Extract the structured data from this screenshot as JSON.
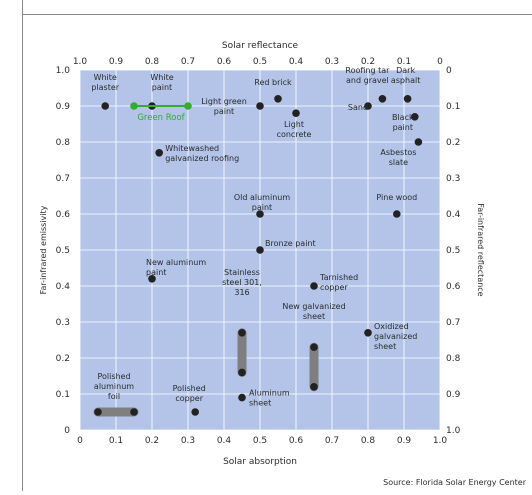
{
  "source": "Source: Florida Solar Energy Center",
  "colors": {
    "plot_bg": "#b3c4e8",
    "grid": "#ffffff",
    "marker": "#222222",
    "bar": "#7f7f7f",
    "green": "#2fae2f"
  },
  "chart_data": {
    "type": "scatter",
    "xlabel": "Solar absorption",
    "x2label": "Solar reflectance",
    "ylabel": "Far-infrared emissivity",
    "y2label": "Far-infrared reflectance",
    "xlim": [
      0,
      1.0
    ],
    "ylim": [
      0,
      1.0
    ],
    "x_ticks": [
      "0",
      "0.1",
      "0.2",
      "0.3",
      "0.4",
      "0.5",
      "0.6",
      "0.7",
      "0.8",
      "0.9",
      "1.0"
    ],
    "x2_ticks": [
      "1.0",
      "0.9",
      "0.8",
      "0.7",
      "0.6",
      "0.5",
      "0.4",
      "0.3",
      "0.2",
      "0.1",
      "0"
    ],
    "y_ticks": [
      "0",
      "0.1",
      "0.2",
      "0.3",
      "0.4",
      "0.5",
      "0.6",
      "0.7",
      "0.8",
      "0.9",
      "1.0"
    ],
    "y2_ticks": [
      "1.0",
      "0.9",
      "0.8",
      "0.7",
      "0.6",
      "0.5",
      "0.4",
      "0.3",
      "0.2",
      "0.1",
      "0"
    ],
    "grid": true,
    "points": [
      {
        "label": [
          "White",
          "plaster"
        ],
        "x": 0.07,
        "y": 0.9
      },
      {
        "label": [
          "White",
          "paint"
        ],
        "x": 0.2,
        "y": 0.9
      },
      {
        "label": [
          "Red brick"
        ],
        "x": 0.55,
        "y": 0.92
      },
      {
        "label": [
          "Light green",
          "paint"
        ],
        "x": 0.5,
        "y": 0.9
      },
      {
        "label": [
          "Light",
          "concrete"
        ],
        "x": 0.6,
        "y": 0.88
      },
      {
        "label": [
          "Roofing tar",
          "and gravel"
        ],
        "x": 0.84,
        "y": 0.92
      },
      {
        "label": [
          "Sand"
        ],
        "x": 0.8,
        "y": 0.9
      },
      {
        "label": [
          "Dark",
          "asphalt"
        ],
        "x": 0.91,
        "y": 0.92
      },
      {
        "label": [
          "Black",
          "paint"
        ],
        "x": 0.93,
        "y": 0.87
      },
      {
        "label": [
          "Asbestos",
          "slate"
        ],
        "x": 0.94,
        "y": 0.8
      },
      {
        "label": [
          "Whitewashed",
          "galvanized roofing"
        ],
        "x": 0.22,
        "y": 0.77
      },
      {
        "label": [
          "Pine wood"
        ],
        "x": 0.88,
        "y": 0.6
      },
      {
        "label": [
          "Old aluminum",
          "paint"
        ],
        "x": 0.5,
        "y": 0.6
      },
      {
        "label": [
          "Bronze paint"
        ],
        "x": 0.5,
        "y": 0.5
      },
      {
        "label": [
          "New aluminum",
          "paint"
        ],
        "x": 0.2,
        "y": 0.42
      },
      {
        "label": [
          "Tarnished",
          "copper"
        ],
        "x": 0.65,
        "y": 0.4
      },
      {
        "label": [
          "Oxidized",
          "galvanized",
          "sheet"
        ],
        "x": 0.8,
        "y": 0.27
      },
      {
        "label": [
          "Polished",
          "copper"
        ],
        "x": 0.32,
        "y": 0.05
      },
      {
        "label": [
          "Aluminum",
          "sheet"
        ],
        "x": 0.45,
        "y": 0.09
      }
    ],
    "ranges": [
      {
        "label": [
          "Polished",
          "aluminum",
          "foil"
        ],
        "x": [
          0.05,
          0.15
        ],
        "y": [
          0.05,
          0.05
        ]
      },
      {
        "label": [
          "Stainless",
          "steel 301,",
          "316"
        ],
        "x": [
          0.45,
          0.45
        ],
        "y": [
          0.16,
          0.27
        ]
      },
      {
        "label": [
          "New galvanized",
          "sheet"
        ],
        "x": [
          0.65,
          0.65
        ],
        "y": [
          0.12,
          0.23
        ]
      }
    ],
    "green_roof": {
      "label": "Green Roof",
      "x": [
        0.15,
        0.3
      ],
      "y": 0.9
    }
  }
}
